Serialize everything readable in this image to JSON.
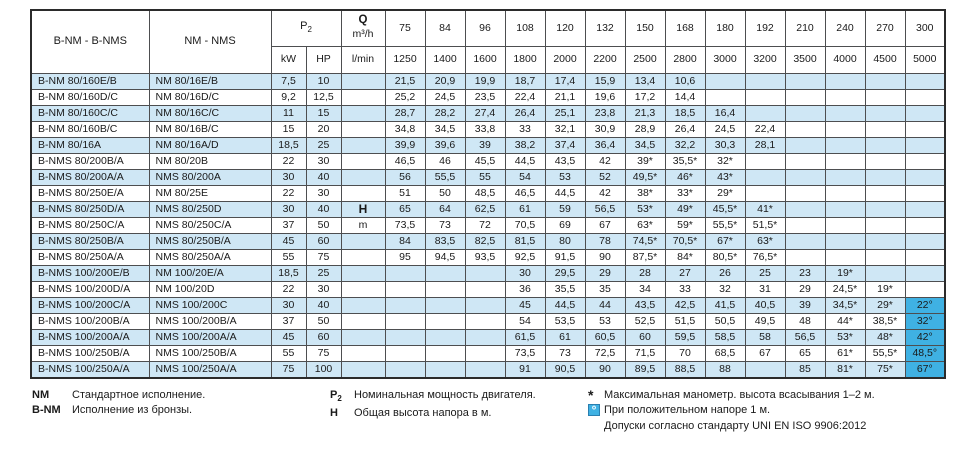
{
  "colors": {
    "row_stripe": "#cfe7f5",
    "highlight_blue": "#3fb1e3",
    "border": "#4d4e50"
  },
  "table": {
    "header": {
      "bnm_label": "B-NM - B-NMS",
      "nm_label": "NM - NMS",
      "p2_main": "P",
      "p2_sub": "2",
      "kw_label": "kW",
      "hp_label": "HP",
      "q_label": "Q",
      "q_unit_m3h": "m³/h",
      "q_unit_lmin": "l/min",
      "flow_m3h": [
        "75",
        "84",
        "96",
        "108",
        "120",
        "132",
        "150",
        "168",
        "180",
        "192",
        "210",
        "240",
        "270",
        "300"
      ],
      "flow_lmin": [
        "1250",
        "1400",
        "1600",
        "1800",
        "2000",
        "2200",
        "2500",
        "2800",
        "3000",
        "3200",
        "3500",
        "4000",
        "4500",
        "5000"
      ]
    },
    "rows": [
      {
        "bnm": "B-NM 80/160E/B",
        "nm": "NM 80/16E/B",
        "kw": "7,5",
        "hp": "10",
        "q": "",
        "values": [
          "21,5",
          "20,9",
          "19,9",
          "18,7",
          "17,4",
          "15,9",
          "13,4",
          "10,6",
          "",
          "",
          "",
          "",
          "",
          ""
        ]
      },
      {
        "bnm": "B-NM 80/160D/C",
        "nm": "NM 80/16D/C",
        "kw": "9,2",
        "hp": "12,5",
        "q": "",
        "values": [
          "25,2",
          "24,5",
          "23,5",
          "22,4",
          "21,1",
          "19,6",
          "17,2",
          "14,4",
          "",
          "",
          "",
          "",
          "",
          ""
        ]
      },
      {
        "bnm": "B-NM 80/160C/C",
        "nm": "NM 80/16C/C",
        "kw": "11",
        "hp": "15",
        "q": "",
        "values": [
          "28,7",
          "28,2",
          "27,4",
          "26,4",
          "25,1",
          "23,8",
          "21,3",
          "18,5",
          "16,4",
          "",
          "",
          "",
          "",
          ""
        ]
      },
      {
        "bnm": "B-NM 80/160B/C",
        "nm": "NM 80/16B/C",
        "kw": "15",
        "hp": "20",
        "q": "",
        "values": [
          "34,8",
          "34,5",
          "33,8",
          "33",
          "32,1",
          "30,9",
          "28,9",
          "26,4",
          "24,5",
          "22,4",
          "",
          "",
          "",
          ""
        ]
      },
      {
        "bnm": "B-NM 80/16A",
        "nm": "NM 80/16A/D",
        "kw": "18,5",
        "hp": "25",
        "q": "",
        "values": [
          "39,9",
          "39,6",
          "39",
          "38,2",
          "37,4",
          "36,4",
          "34,5",
          "32,2",
          "30,3",
          "28,1",
          "",
          "",
          "",
          ""
        ]
      },
      {
        "bnm": "B-NMS 80/200B/A",
        "nm": "NM 80/20B",
        "kw": "22",
        "hp": "30",
        "q": "",
        "values": [
          "46,5",
          "46",
          "45,5",
          "44,5",
          "43,5",
          "42",
          "39*",
          "35,5*",
          "32*",
          "",
          "",
          "",
          "",
          ""
        ]
      },
      {
        "bnm": "B-NMS 80/200A/A",
        "nm": "NMS 80/200A",
        "kw": "30",
        "hp": "40",
        "q": "",
        "values": [
          "56",
          "55,5",
          "55",
          "54",
          "53",
          "52",
          "49,5*",
          "46*",
          "43*",
          "",
          "",
          "",
          "",
          ""
        ]
      },
      {
        "bnm": "B-NMS 80/250E/A",
        "nm": "NM 80/25E",
        "kw": "22",
        "hp": "30",
        "q": "",
        "values": [
          "51",
          "50",
          "48,5",
          "46,5",
          "44,5",
          "42",
          "38*",
          "33*",
          "29*",
          "",
          "",
          "",
          "",
          ""
        ]
      },
      {
        "bnm": "B-NMS 80/250D/A",
        "nm": "NMS 80/250D",
        "kw": "30",
        "hp": "40",
        "q": "H",
        "values": [
          "65",
          "64",
          "62,5",
          "61",
          "59",
          "56,5",
          "53*",
          "49*",
          "45,5*",
          "41*",
          "",
          "",
          "",
          ""
        ]
      },
      {
        "bnm": "B-NMS 80/250C/A",
        "nm": "NMS 80/250C/A",
        "kw": "37",
        "hp": "50",
        "q": "m",
        "values": [
          "73,5",
          "73",
          "72",
          "70,5",
          "69",
          "67",
          "63*",
          "59*",
          "55,5*",
          "51,5*",
          "",
          "",
          "",
          ""
        ]
      },
      {
        "bnm": "B-NMS 80/250B/A",
        "nm": "NMS 80/250B/A",
        "kw": "45",
        "hp": "60",
        "q": "",
        "values": [
          "84",
          "83,5",
          "82,5",
          "81,5",
          "80",
          "78",
          "74,5*",
          "70,5*",
          "67*",
          "63*",
          "",
          "",
          "",
          ""
        ]
      },
      {
        "bnm": "B-NMS 80/250A/A",
        "nm": "NMS 80/250A/A",
        "kw": "55",
        "hp": "75",
        "q": "",
        "values": [
          "95",
          "94,5",
          "93,5",
          "92,5",
          "91,5",
          "90",
          "87,5*",
          "84*",
          "80,5*",
          "76,5*",
          "",
          "",
          "",
          ""
        ]
      },
      {
        "bnm": "B-NMS 100/200E/B",
        "nm": "NM 100/20E/A",
        "kw": "18,5",
        "hp": "25",
        "q": "",
        "values": [
          "",
          "",
          "",
          "30",
          "29,5",
          "29",
          "28",
          "27",
          "26",
          "25",
          "23",
          "19*",
          "",
          ""
        ]
      },
      {
        "bnm": "B-NMS 100/200D/A",
        "nm": "NM 100/20D",
        "kw": "22",
        "hp": "30",
        "q": "",
        "values": [
          "",
          "",
          "",
          "36",
          "35,5",
          "35",
          "34",
          "33",
          "32",
          "31",
          "29",
          "24,5*",
          "19*",
          ""
        ]
      },
      {
        "bnm": "B-NMS 100/200C/A",
        "nm": "NMS 100/200C",
        "kw": "30",
        "hp": "40",
        "q": "",
        "values": [
          "",
          "",
          "",
          "45",
          "44,5",
          "44",
          "43,5",
          "42,5",
          "41,5",
          "40,5",
          "39",
          "34,5*",
          "29*",
          "22°"
        ]
      },
      {
        "bnm": "B-NMS 100/200B/A",
        "nm": "NMS 100/200B/A",
        "kw": "37",
        "hp": "50",
        "q": "",
        "values": [
          "",
          "",
          "",
          "54",
          "53,5",
          "53",
          "52,5",
          "51,5",
          "50,5",
          "49,5",
          "48",
          "44*",
          "38,5*",
          "32°"
        ]
      },
      {
        "bnm": "B-NMS 100/200A/A",
        "nm": "NMS 100/200A/A",
        "kw": "45",
        "hp": "60",
        "q": "",
        "values": [
          "",
          "",
          "",
          "61,5",
          "61",
          "60,5",
          "60",
          "59,5",
          "58,5",
          "58",
          "56,5",
          "53*",
          "48*",
          "42°"
        ]
      },
      {
        "bnm": "B-NMS 100/250B/A",
        "nm": "NMS 100/250B/A",
        "kw": "55",
        "hp": "75",
        "q": "",
        "values": [
          "",
          "",
          "",
          "73,5",
          "73",
          "72,5",
          "71,5",
          "70",
          "68,5",
          "67",
          "65",
          "61*",
          "55,5*",
          "48,5°"
        ]
      },
      {
        "bnm": "B-NMS 100/250A/A",
        "nm": "NMS 100/250A/A",
        "kw": "75",
        "hp": "100",
        "q": "",
        "values": [
          "",
          "",
          "",
          "91",
          "90,5",
          "90",
          "89,5",
          "88,5",
          "88",
          "",
          "85",
          "81*",
          "75*",
          "67°"
        ]
      }
    ]
  },
  "legend": {
    "nm": {
      "symbol": "NM",
      "text": "Стандартное исполнение."
    },
    "bnm": {
      "symbol": "B-NM",
      "text": "Исполнение из бронзы."
    },
    "p2": {
      "symbol_main": "P",
      "symbol_sub": "2",
      "text": "Номинальная мощность двигателя."
    },
    "h": {
      "symbol": "H",
      "text": "Общая высота напора в м."
    },
    "star": {
      "symbol": "*",
      "text": "Максимальная манометр. высота всасывания 1–2 м."
    },
    "deg": {
      "symbol": "°",
      "text": "При положительном напоре 1 м."
    },
    "note": "Допуски согласно стандарту UNI EN ISO 9906:2012"
  }
}
